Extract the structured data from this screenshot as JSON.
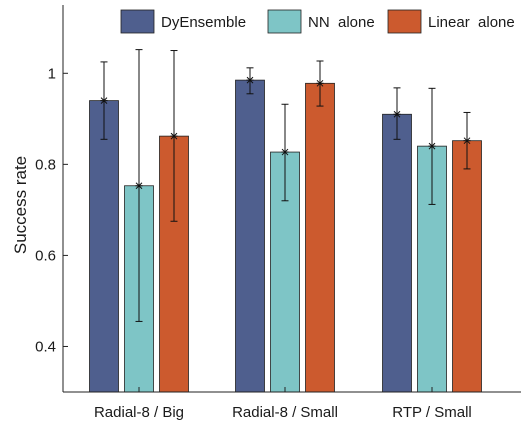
{
  "chart_data": {
    "type": "bar",
    "title": "",
    "xlabel": "",
    "ylabel": "Success rate",
    "ylim": [
      0.3,
      1.15
    ],
    "yticks": [
      "0.4",
      "0.6",
      "0.8",
      "1"
    ],
    "grid": false,
    "legend_position": "top-right",
    "categories": [
      "Radial-8 / Big",
      "Radial-8 / Small",
      "RTP / Small"
    ],
    "series": [
      {
        "name": "DyEnsemble",
        "color": "#4f5f8e",
        "values": [
          0.94,
          0.985,
          0.91
        ],
        "error_low": [
          0.855,
          0.955,
          0.855
        ],
        "error_high": [
          1.025,
          1.012,
          0.968
        ]
      },
      {
        "name": "NN  alone",
        "color": "#7ec5c6",
        "values": [
          0.753,
          0.827,
          0.84
        ],
        "error_low": [
          0.455,
          0.72,
          0.712
        ],
        "error_high": [
          1.052,
          0.932,
          0.967
        ]
      },
      {
        "name": "Linear  alone",
        "color": "#cc5a2e",
        "values": [
          0.862,
          0.978,
          0.852
        ],
        "error_low": [
          0.675,
          0.928,
          0.79
        ],
        "error_high": [
          1.05,
          1.027,
          0.914
        ]
      }
    ]
  }
}
